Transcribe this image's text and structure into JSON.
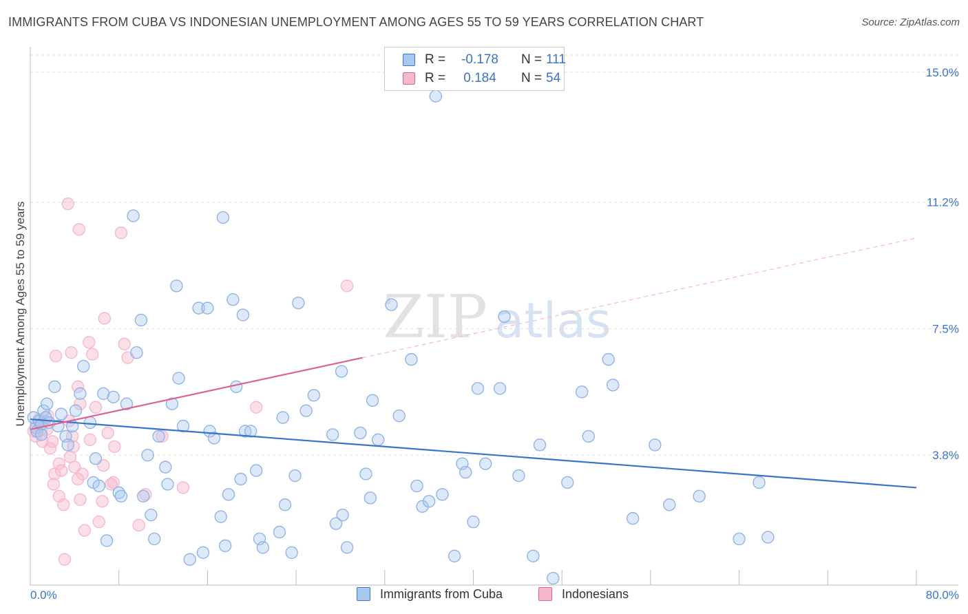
{
  "title": "IMMIGRANTS FROM CUBA VS INDONESIAN UNEMPLOYMENT AMONG AGES 55 TO 59 YEARS CORRELATION CHART",
  "source": "Source: ZipAtlas.com",
  "watermark": {
    "zip": "ZIP",
    "atlas": "atlas"
  },
  "colors": {
    "blue": "#3a74c8",
    "blue_fill": "#a9c8f0",
    "pink": "#e0608f",
    "pink_fill": "#f6b8cc"
  },
  "legend": {
    "rows": [
      {
        "r_label": "R =",
        "r_value": "-0.178",
        "n_label": "N =",
        "n_value": "111"
      },
      {
        "r_label": "R =",
        "r_value": "0.184",
        "n_label": "N =",
        "n_value": "54"
      }
    ]
  },
  "bottom_legend": {
    "series1": "Immigrants from Cuba",
    "series2": "Indonesians"
  },
  "chart_data": {
    "type": "scatter",
    "title": "IMMIGRANTS FROM CUBA VS INDONESIAN UNEMPLOYMENT AMONG AGES 55 TO 59 YEARS CORRELATION CHART",
    "xlabel": "",
    "ylabel": "Unemployment Among Ages 55 to 59 years",
    "xlim": [
      0,
      80
    ],
    "ylim": [
      0,
      15.5
    ],
    "x_tick_labels": [
      {
        "value": 0,
        "label": "0.0%"
      },
      {
        "value": 80,
        "label": "80.0%"
      }
    ],
    "y_tick_labels": [
      {
        "value": 3.8,
        "label": "3.8%"
      },
      {
        "value": 7.5,
        "label": "7.5%"
      },
      {
        "value": 11.2,
        "label": "11.2%"
      },
      {
        "value": 15.0,
        "label": "15.0%"
      }
    ],
    "grid": true,
    "series": [
      {
        "name": "Immigrants from Cuba",
        "color": "#3a74c8",
        "trend": {
          "x": [
            0,
            80
          ],
          "y": [
            4.85,
            2.85
          ],
          "style": "solid"
        },
        "points": [
          [
            0.3,
            4.9
          ],
          [
            0.5,
            4.6
          ],
          [
            0.6,
            4.5
          ],
          [
            0.8,
            4.8
          ],
          [
            1,
            4.7
          ],
          [
            1,
            4.4
          ],
          [
            1.2,
            5.1
          ],
          [
            1.4,
            4.9
          ],
          [
            1.5,
            5.3
          ],
          [
            1.7,
            4.75
          ],
          [
            2.2,
            5.8
          ],
          [
            2.5,
            4.65
          ],
          [
            2.8,
            5.0
          ],
          [
            3.2,
            4.35
          ],
          [
            3.4,
            4.1
          ],
          [
            3.8,
            4.65
          ],
          [
            4.1,
            5.1
          ],
          [
            4.5,
            5.6
          ],
          [
            4.8,
            6.4
          ],
          [
            5.4,
            4.75
          ],
          [
            5.7,
            3.0
          ],
          [
            5.9,
            3.7
          ],
          [
            6.2,
            2.9
          ],
          [
            6.6,
            5.6
          ],
          [
            6.9,
            1.3
          ],
          [
            7.5,
            5.5
          ],
          [
            8,
            2.7
          ],
          [
            8.2,
            2.6
          ],
          [
            8.7,
            5.3
          ],
          [
            9.3,
            10.8
          ],
          [
            9.6,
            6.8
          ],
          [
            10,
            7.75
          ],
          [
            10.2,
            2.6
          ],
          [
            10.6,
            3.8
          ],
          [
            10.9,
            2.05
          ],
          [
            11.2,
            1.35
          ],
          [
            11.6,
            4.35
          ],
          [
            12.2,
            3.45
          ],
          [
            12.4,
            2.95
          ],
          [
            12.8,
            5.3
          ],
          [
            13.2,
            8.75
          ],
          [
            13.4,
            6.05
          ],
          [
            13.8,
            4.65
          ],
          [
            14.4,
            0.75
          ],
          [
            15.2,
            8.1
          ],
          [
            15.6,
            0.95
          ],
          [
            16,
            8.1
          ],
          [
            16.2,
            4.5
          ],
          [
            16.6,
            4.3
          ],
          [
            17.2,
            2.0
          ],
          [
            17.4,
            10.75
          ],
          [
            17.6,
            1.15
          ],
          [
            17.9,
            2.65
          ],
          [
            18.3,
            8.35
          ],
          [
            18.6,
            5.8
          ],
          [
            19,
            3.1
          ],
          [
            19.2,
            7.9
          ],
          [
            19.4,
            4.5
          ],
          [
            19.9,
            4.5
          ],
          [
            20.4,
            3.35
          ],
          [
            20.7,
            1.35
          ],
          [
            21,
            1.1
          ],
          [
            22.5,
            1.55
          ],
          [
            22.8,
            4.9
          ],
          [
            23,
            2.35
          ],
          [
            23.6,
            0.95
          ],
          [
            23.9,
            3.2
          ],
          [
            24.2,
            8.25
          ],
          [
            24.9,
            5.1
          ],
          [
            25.6,
            5.55
          ],
          [
            27.3,
            4.4
          ],
          [
            27.6,
            1.8
          ],
          [
            28.1,
            6.25
          ],
          [
            28.2,
            2.05
          ],
          [
            28.6,
            1.1
          ],
          [
            29.8,
            4.45
          ],
          [
            30.3,
            3.25
          ],
          [
            30.7,
            2.55
          ],
          [
            30.9,
            5.4
          ],
          [
            31.4,
            4.25
          ],
          [
            32.6,
            8.2
          ],
          [
            33.3,
            4.95
          ],
          [
            34.4,
            6.6
          ],
          [
            34.9,
            2.9
          ],
          [
            35.4,
            2.3
          ],
          [
            36,
            2.45
          ],
          [
            36.6,
            14.3
          ],
          [
            37.2,
            2.65
          ],
          [
            38.3,
            0.85
          ],
          [
            39,
            3.55
          ],
          [
            39.3,
            3.3
          ],
          [
            40,
            1.85
          ],
          [
            40.4,
            5.75
          ],
          [
            41.1,
            3.55
          ],
          [
            42.4,
            5.75
          ],
          [
            42.8,
            7.85
          ],
          [
            44.1,
            3.2
          ],
          [
            45.4,
            0.85
          ],
          [
            46,
            4.1
          ],
          [
            47.2,
            0.2
          ],
          [
            48.5,
            3.0
          ],
          [
            49.8,
            5.65
          ],
          [
            50.4,
            4.35
          ],
          [
            52.2,
            6.6
          ],
          [
            52.6,
            5.85
          ],
          [
            54.4,
            1.95
          ],
          [
            56.4,
            4.1
          ],
          [
            57.7,
            2.35
          ],
          [
            60.4,
            2.6
          ],
          [
            64,
            1.35
          ],
          [
            65.8,
            3.0
          ],
          [
            66.6,
            1.4
          ]
        ]
      },
      {
        "name": "Indonesians",
        "color": "#e0608f",
        "trend": {
          "x": [
            0,
            30
          ],
          "y": [
            4.55,
            6.65
          ],
          "style": "solid"
        },
        "trend_ext": {
          "x": [
            30,
            80
          ],
          "y": [
            6.65,
            10.15
          ],
          "style": "dashed"
        },
        "points": [
          [
            0.3,
            4.5
          ],
          [
            0.5,
            4.35
          ],
          [
            0.6,
            4.7
          ],
          [
            0.8,
            4.85
          ],
          [
            1,
            4.55
          ],
          [
            1.1,
            4.2
          ],
          [
            1.3,
            4.8
          ],
          [
            1.5,
            4.55
          ],
          [
            1.6,
            4.95
          ],
          [
            1.8,
            4.0
          ],
          [
            2,
            4.2
          ],
          [
            2.1,
            2.95
          ],
          [
            2.2,
            3.25
          ],
          [
            2.3,
            6.7
          ],
          [
            2.6,
            3.55
          ],
          [
            2.8,
            3.35
          ],
          [
            3,
            2.35
          ],
          [
            3.1,
            0.75
          ],
          [
            3.4,
            11.15
          ],
          [
            3.5,
            4.8
          ],
          [
            3.6,
            3.75
          ],
          [
            3.7,
            6.8
          ],
          [
            3.8,
            4.35
          ],
          [
            3.9,
            4.05
          ],
          [
            4,
            3.45
          ],
          [
            4.3,
            5.8
          ],
          [
            4.5,
            5.3
          ],
          [
            4.3,
            3.1
          ],
          [
            4.5,
            2.5
          ],
          [
            4.7,
            3.25
          ],
          [
            4.4,
            10.4
          ],
          [
            4.9,
            1.6
          ],
          [
            5.3,
            7.1
          ],
          [
            5.4,
            4.25
          ],
          [
            5.6,
            6.75
          ],
          [
            5.9,
            5.2
          ],
          [
            6.2,
            1.85
          ],
          [
            6.5,
            2.45
          ],
          [
            6.6,
            3.5
          ],
          [
            6.7,
            7.8
          ],
          [
            7,
            4.45
          ],
          [
            7.3,
            2.95
          ],
          [
            7.5,
            3.0
          ],
          [
            7.6,
            4.05
          ],
          [
            8.2,
            10.3
          ],
          [
            8.5,
            7.05
          ],
          [
            8.8,
            6.65
          ],
          [
            9.8,
            1.75
          ],
          [
            10.4,
            2.65
          ],
          [
            11.9,
            4.35
          ],
          [
            13.8,
            2.85
          ],
          [
            20.4,
            5.2
          ],
          [
            28.6,
            8.75
          ],
          [
            2.6,
            2.6
          ]
        ]
      }
    ]
  }
}
